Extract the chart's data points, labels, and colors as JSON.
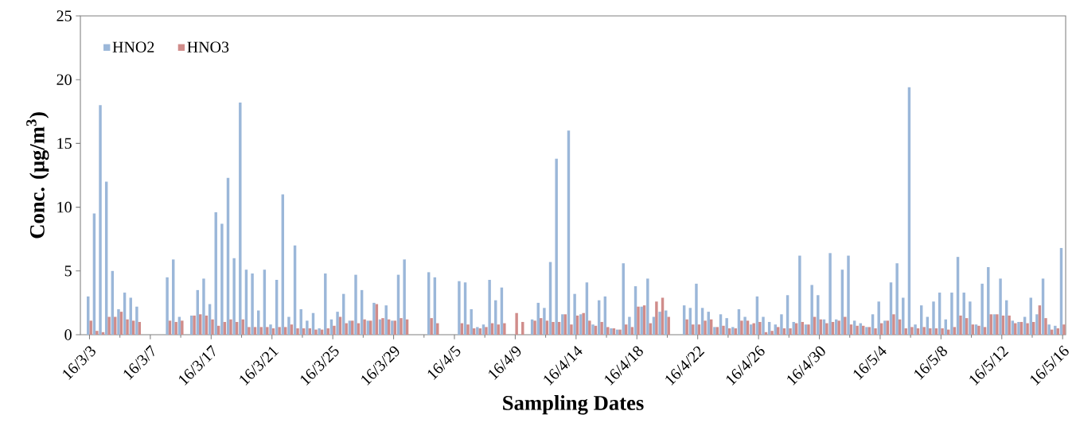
{
  "chart_data": {
    "type": "bar",
    "xlabel": "Sampling Dates",
    "ylabel": "Conc. (μg/m$^{3}$)",
    "categories": [
      null,
      "16/3/3",
      null,
      null,
      null,
      null,
      null,
      null,
      null,
      null,
      null,
      "16/3/7",
      null,
      null,
      null,
      null,
      null,
      null,
      null,
      null,
      null,
      "16/3/17",
      null,
      null,
      null,
      null,
      null,
      null,
      null,
      null,
      null,
      "16/3/21",
      null,
      null,
      null,
      null,
      null,
      null,
      null,
      null,
      null,
      "16/3/25",
      null,
      null,
      null,
      null,
      null,
      null,
      null,
      null,
      null,
      "16/3/29",
      null,
      null,
      null,
      null,
      null,
      null,
      null,
      null,
      null,
      "16/4/5",
      null,
      null,
      null,
      null,
      null,
      null,
      null,
      null,
      null,
      "16/4/9",
      null,
      null,
      null,
      null,
      null,
      null,
      null,
      null,
      null,
      "16/4/14",
      null,
      null,
      null,
      null,
      null,
      null,
      null,
      null,
      null,
      "16/4/18",
      null,
      null,
      null,
      null,
      null,
      null,
      null,
      null,
      null,
      "16/4/22",
      null,
      null,
      null,
      null,
      null,
      null,
      null,
      null,
      null,
      "16/4/26",
      null,
      null,
      null,
      null,
      null,
      null,
      null,
      null,
      null,
      "16/4/30",
      null,
      null,
      null,
      null,
      null,
      null,
      null,
      null,
      null,
      "16/5/4",
      null,
      null,
      null,
      null,
      null,
      null,
      null,
      null,
      null,
      "16/5/8",
      null,
      null,
      null,
      null,
      null,
      null,
      null,
      null,
      null,
      "16/5/12",
      null,
      null,
      null,
      null,
      null,
      null,
      null,
      null,
      null,
      "16/5/16"
    ],
    "series": [
      {
        "name": "HNO2",
        "color": "#9bb7d9",
        "values": [
          null,
          3.0,
          9.5,
          18.0,
          12.0,
          5.0,
          2.0,
          3.3,
          2.9,
          2.2,
          null,
          null,
          null,
          null,
          4.5,
          5.9,
          1.4,
          null,
          1.5,
          3.5,
          4.4,
          2.4,
          9.6,
          8.7,
          12.3,
          6.0,
          18.2,
          5.1,
          4.8,
          1.9,
          5.1,
          0.8,
          4.3,
          11.0,
          1.4,
          7.0,
          2.0,
          1.1,
          1.7,
          0.5,
          4.8,
          1.2,
          1.8,
          3.2,
          1.1,
          4.7,
          3.5,
          1.1,
          2.5,
          1.2,
          2.3,
          1.1,
          4.7,
          5.9,
          null,
          null,
          null,
          4.9,
          4.5,
          null,
          null,
          null,
          4.2,
          4.1,
          2.0,
          0.6,
          0.8,
          4.3,
          2.7,
          3.7,
          null,
          null,
          null,
          null,
          1.2,
          2.5,
          2.1,
          5.7,
          13.8,
          1.6,
          16.0,
          3.2,
          1.6,
          4.1,
          0.8,
          2.7,
          3.0,
          0.5,
          0.4,
          5.6,
          1.4,
          3.8,
          2.2,
          4.4,
          1.4,
          1.8,
          1.9,
          null,
          null,
          2.3,
          2.1,
          4.0,
          2.1,
          1.8,
          0.6,
          1.6,
          1.3,
          0.6,
          2.0,
          1.4,
          0.8,
          3.0,
          1.4,
          1.0,
          0.8,
          1.6,
          3.1,
          1.0,
          6.2,
          0.8,
          3.9,
          3.1,
          1.2,
          6.4,
          1.2,
          5.1,
          6.2,
          1.1,
          0.9,
          0.6,
          1.6,
          2.6,
          1.1,
          4.1,
          5.6,
          2.9,
          19.4,
          0.8,
          2.3,
          1.4,
          2.6,
          3.3,
          1.2,
          3.3,
          6.1,
          3.3,
          2.6,
          0.8,
          4.0,
          5.3,
          1.6,
          4.4,
          2.7,
          1.1,
          1.0,
          1.4,
          2.9,
          1.6,
          4.4,
          0.8,
          0.7,
          6.8
        ]
      },
      {
        "name": "HNO3",
        "color": "#d08c8a",
        "values": [
          null,
          1.1,
          0.3,
          0.2,
          1.4,
          1.4,
          1.8,
          1.2,
          1.1,
          1.0,
          null,
          null,
          null,
          null,
          1.1,
          1.0,
          1.1,
          null,
          1.5,
          1.6,
          1.5,
          1.2,
          0.7,
          1.0,
          1.2,
          1.0,
          1.2,
          0.6,
          0.6,
          0.6,
          0.6,
          0.5,
          0.6,
          0.6,
          0.8,
          0.5,
          0.5,
          0.5,
          0.4,
          0.4,
          0.5,
          0.7,
          1.4,
          0.9,
          1.1,
          0.9,
          1.2,
          1.1,
          2.4,
          1.3,
          1.2,
          1.1,
          1.3,
          1.2,
          null,
          null,
          null,
          1.3,
          0.9,
          null,
          null,
          null,
          0.9,
          0.8,
          0.5,
          0.5,
          0.6,
          0.9,
          0.8,
          0.9,
          null,
          1.7,
          1.0,
          null,
          1.1,
          1.3,
          1.1,
          1.0,
          1.0,
          1.6,
          0.8,
          1.5,
          1.7,
          1.1,
          0.7,
          1.0,
          0.6,
          0.5,
          0.4,
          0.8,
          0.6,
          2.2,
          2.3,
          0.9,
          2.6,
          2.9,
          1.4,
          null,
          null,
          1.2,
          0.8,
          0.8,
          1.1,
          1.2,
          0.6,
          0.7,
          0.5,
          0.5,
          1.1,
          1.1,
          0.9,
          1.0,
          0.2,
          0.3,
          0.6,
          0.5,
          0.5,
          0.9,
          1.0,
          0.8,
          1.4,
          1.2,
          0.9,
          1.0,
          1.1,
          1.4,
          0.8,
          0.7,
          0.7,
          0.6,
          0.5,
          0.9,
          1.1,
          1.6,
          1.2,
          0.5,
          0.6,
          0.5,
          0.6,
          0.5,
          0.5,
          0.5,
          0.4,
          0.6,
          1.5,
          1.3,
          0.8,
          0.7,
          0.6,
          1.6,
          1.6,
          1.5,
          1.5,
          0.9,
          1.0,
          0.9,
          1.0,
          2.3,
          1.3,
          0.4,
          0.5,
          0.8
        ]
      }
    ],
    "ylim": [
      0,
      25
    ],
    "yticks": [
      0,
      5,
      10,
      15,
      20,
      25
    ],
    "legend": "top left"
  }
}
